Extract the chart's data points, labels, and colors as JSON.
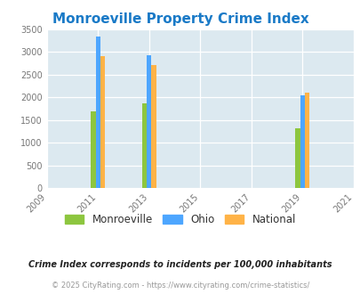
{
  "title": "Monroeville Property Crime Index",
  "title_color": "#1a7ac7",
  "background_color": "#dce9f0",
  "fig_background": "#ffffff",
  "years": [
    2011,
    2013,
    2019
  ],
  "monroeville": [
    1700,
    1870,
    1320
  ],
  "ohio": [
    3340,
    2930,
    2050
  ],
  "national": [
    2910,
    2720,
    2110
  ],
  "bar_colors": {
    "monroeville": "#8dc63f",
    "ohio": "#4da6ff",
    "national": "#ffb347"
  },
  "xlim": [
    2009,
    2021
  ],
  "xticks": [
    2009,
    2011,
    2013,
    2015,
    2017,
    2019,
    2021
  ],
  "ylim": [
    0,
    3500
  ],
  "yticks": [
    0,
    500,
    1000,
    1500,
    2000,
    2500,
    3000,
    3500
  ],
  "bar_width": 0.55,
  "legend_labels": [
    "Monroeville",
    "Ohio",
    "National"
  ],
  "footnote1": "Crime Index corresponds to incidents per 100,000 inhabitants",
  "footnote2": "© 2025 CityRating.com - https://www.cityrating.com/crime-statistics/",
  "footnote1_color": "#222222",
  "footnote2_color": "#999999"
}
